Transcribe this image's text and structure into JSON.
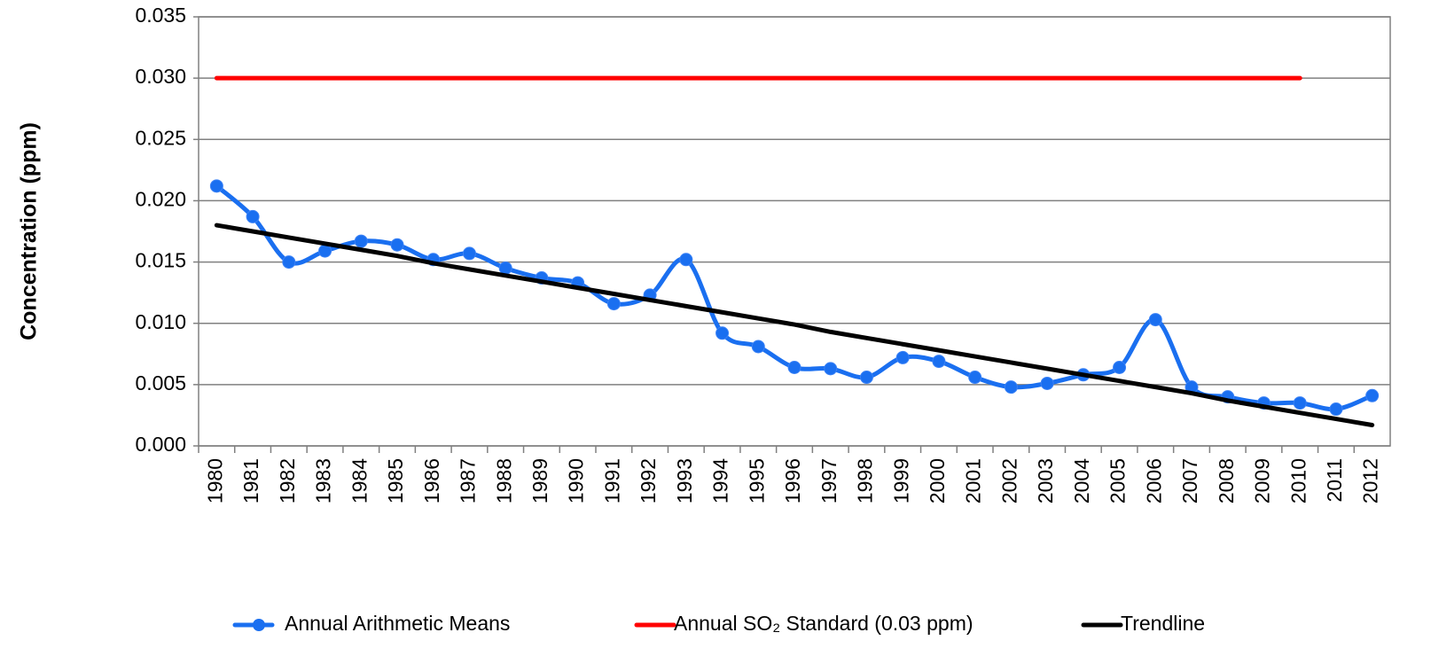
{
  "chart_data": {
    "type": "line",
    "y_label": "Concentration (ppm)",
    "categories": [
      "1980",
      "1981",
      "1982",
      "1983",
      "1984",
      "1985",
      "1986",
      "1987",
      "1988",
      "1989",
      "1990",
      "1991",
      "1992",
      "1993",
      "1994",
      "1995",
      "1996",
      "1997",
      "1998",
      "1999",
      "2000",
      "2001",
      "2002",
      "2003",
      "2004",
      "2005",
      "2006",
      "2007",
      "2008",
      "2009",
      "2010",
      "2011",
      "2012"
    ],
    "series": [
      {
        "name": "Annual Arithmetic Means",
        "color": "#1a6ff0",
        "smooth": true,
        "marker": true,
        "values": [
          0.0212,
          0.0187,
          0.015,
          0.0159,
          0.0167,
          0.0164,
          0.0152,
          0.0157,
          0.0145,
          0.0137,
          0.0133,
          0.0116,
          0.0123,
          0.0152,
          0.0092,
          0.0081,
          0.0064,
          0.0063,
          0.0056,
          0.0072,
          0.0069,
          0.0056,
          0.0048,
          0.0051,
          0.0058,
          0.0064,
          0.0103,
          0.0048,
          0.004,
          0.0035,
          0.0035,
          0.003,
          0.0041
        ]
      },
      {
        "name": "Annual SO₂ Standard (0.03 ppm)",
        "color": "#ff0000",
        "smooth": false,
        "marker": false,
        "values": [
          0.03,
          0.03,
          0.03,
          0.03,
          0.03,
          0.03,
          0.03,
          0.03,
          0.03,
          0.03,
          0.03,
          0.03,
          0.03,
          0.03,
          0.03,
          0.03,
          0.03,
          0.03,
          0.03,
          0.03,
          0.03,
          0.03,
          0.03,
          0.03,
          0.03,
          0.03,
          0.03,
          0.03,
          0.03,
          0.03,
          0.03,
          null,
          null
        ]
      },
      {
        "name": "Trendline",
        "color": "#000000",
        "smooth": false,
        "marker": false,
        "values": [
          0.018,
          0.0175,
          0.017,
          0.0165,
          0.016,
          0.0155,
          0.0149,
          0.0144,
          0.0139,
          0.0134,
          0.0129,
          0.0124,
          0.0119,
          0.0114,
          0.0109,
          0.0104,
          0.0099,
          0.0093,
          0.0088,
          0.0083,
          0.0078,
          0.0073,
          0.0068,
          0.0063,
          0.0058,
          0.0053,
          0.0048,
          0.0043,
          0.0037,
          0.0032,
          0.0027,
          0.0022,
          0.0017
        ]
      }
    ],
    "ylim": [
      0,
      0.035
    ],
    "yticks": [
      {
        "value": 0,
        "label": "0.000"
      },
      {
        "value": 0.005,
        "label": "0.005"
      },
      {
        "value": 0.01,
        "label": "0.010"
      },
      {
        "value": 0.015,
        "label": "0.015"
      },
      {
        "value": 0.02,
        "label": "0.020"
      },
      {
        "value": 0.025,
        "label": "0.025"
      },
      {
        "value": 0.03,
        "label": "0.030"
      },
      {
        "value": 0.035,
        "label": "0.035"
      }
    ],
    "grid": true,
    "legend": "bottom"
  }
}
